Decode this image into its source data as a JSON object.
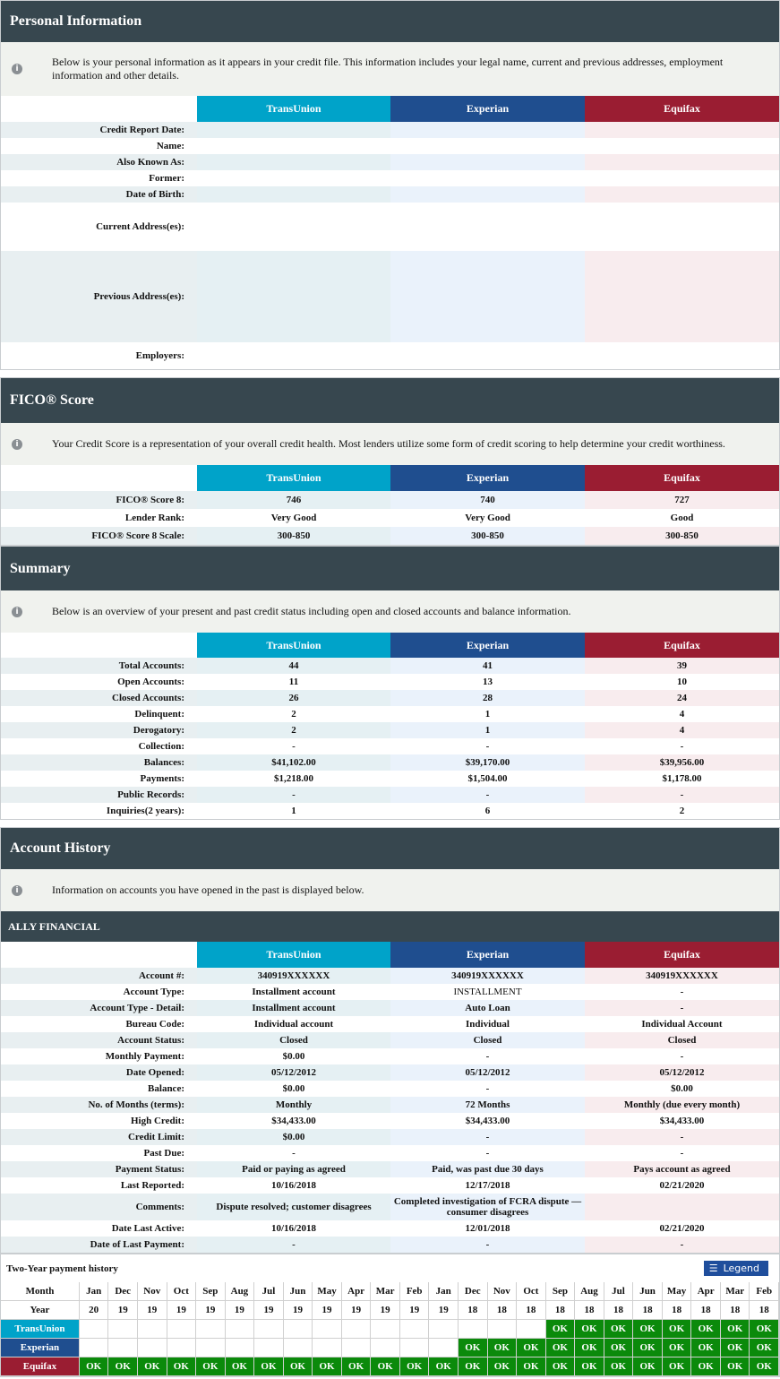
{
  "personal": {
    "title": "Personal Information",
    "info": "Below is your personal information as it appears in your credit file. This information includes your legal name, current and previous addresses, employment information and other details.",
    "bureaus": [
      "TransUnion",
      "Experian",
      "Equifax"
    ],
    "rows": [
      {
        "label": "Credit Report Date:",
        "values": [
          null,
          null,
          null
        ]
      },
      {
        "label": "Name:",
        "values": [
          null,
          null,
          null
        ]
      },
      {
        "label": "Also Known As:",
        "values": [
          null,
          null,
          null
        ]
      },
      {
        "label": "Former:",
        "values": [
          null,
          null,
          null
        ]
      },
      {
        "label": "Date of Birth:",
        "values": [
          null,
          null,
          null
        ]
      },
      {
        "label": "Current Address(es):",
        "values": [
          null,
          null,
          null
        ]
      },
      {
        "label": "Previous Address(es):",
        "values": [
          null,
          null,
          null
        ]
      },
      {
        "label": "Employers:",
        "values": [
          null,
          null,
          null
        ]
      }
    ]
  },
  "fico": {
    "title": "FICO® Score",
    "info": "Your Credit Score is a representation of your overall credit health. Most lenders utilize some form of credit scoring to help determine your credit worthiness.",
    "bureaus": [
      "TransUnion",
      "Experian",
      "Equifax"
    ],
    "rows": [
      {
        "label": "FICO® Score 8:",
        "values": [
          746,
          740,
          727
        ]
      },
      {
        "label": "Lender Rank:",
        "values": [
          "Very Good",
          "Very Good",
          "Good"
        ]
      },
      {
        "label": "FICO® Score 8 Scale:",
        "values": [
          "300-850",
          "300-850",
          "300-850"
        ]
      }
    ]
  },
  "summary": {
    "title": "Summary",
    "info": "Below is an overview of your present and past credit status including open and closed accounts and balance information.",
    "bureaus": [
      "TransUnion",
      "Experian",
      "Equifax"
    ],
    "rows": [
      {
        "label": "Total Accounts:",
        "values": [
          44,
          41,
          39
        ]
      },
      {
        "label": "Open Accounts:",
        "values": [
          11,
          13,
          10
        ]
      },
      {
        "label": "Closed Accounts:",
        "values": [
          26,
          28,
          24
        ]
      },
      {
        "label": "Delinquent:",
        "values": [
          2,
          1,
          4
        ]
      },
      {
        "label": "Derogatory:",
        "values": [
          2,
          1,
          4
        ]
      },
      {
        "label": "Collection:",
        "values": [
          "-",
          "-",
          "-"
        ]
      },
      {
        "label": "Balances:",
        "values": [
          "$41,102.00",
          "$39,170.00",
          "$39,956.00"
        ]
      },
      {
        "label": "Payments:",
        "values": [
          "$1,218.00",
          "$1,504.00",
          "$1,178.00"
        ]
      },
      {
        "label": "Public Records:",
        "values": [
          "-",
          "-",
          "-"
        ]
      },
      {
        "label": "Inquiries(2 years):",
        "values": [
          1,
          6,
          2
        ]
      }
    ]
  },
  "accounts": {
    "title": "Account History",
    "info": "Information on accounts you have opened in the past is displayed below.",
    "account_name": "ALLY FINANCIAL",
    "bureaus": [
      "TransUnion",
      "Experian",
      "Equifax"
    ],
    "rows": [
      {
        "label": "Account #:",
        "values": [
          "340919XXXXXX",
          "340919XXXXXX",
          "340919XXXXXX"
        ]
      },
      {
        "label": "Account Type:",
        "values": [
          "Installment account",
          "INSTALLMENT",
          "-"
        ]
      },
      {
        "label": "Account Type - Detail:",
        "values": [
          "Installment account",
          "Auto Loan",
          "-"
        ]
      },
      {
        "label": "Bureau Code:",
        "values": [
          "Individual account",
          "Individual",
          "Individual Account"
        ]
      },
      {
        "label": "Account Status:",
        "values": [
          "Closed",
          "Closed",
          "Closed"
        ]
      },
      {
        "label": "Monthly Payment:",
        "values": [
          "$0.00",
          "-",
          "-"
        ]
      },
      {
        "label": "Date Opened:",
        "values": [
          "05/12/2012",
          "05/12/2012",
          "05/12/2012"
        ]
      },
      {
        "label": "Balance:",
        "values": [
          "$0.00",
          "-",
          "$0.00"
        ]
      },
      {
        "label": "No. of Months (terms):",
        "values": [
          "Monthly",
          "72 Months",
          "Monthly (due every month)"
        ]
      },
      {
        "label": "High Credit:",
        "values": [
          "$34,433.00",
          "$34,433.00",
          "$34,433.00"
        ]
      },
      {
        "label": "Credit Limit:",
        "values": [
          "$0.00",
          "-",
          "-"
        ]
      },
      {
        "label": "Past Due:",
        "values": [
          "-",
          "-",
          "-"
        ]
      },
      {
        "label": "Payment Status:",
        "values": [
          "Paid or paying as agreed",
          "Paid, was past due 30 days",
          "Pays account as agreed"
        ]
      },
      {
        "label": "Last Reported:",
        "values": [
          "10/16/2018",
          "12/17/2018",
          "02/21/2020"
        ]
      },
      {
        "label": "Comments:",
        "values": [
          "Dispute resolved; customer disagrees",
          "Completed investigation of FCRA dispute — consumer disagrees",
          null
        ]
      },
      {
        "label": "Date Last Active:",
        "values": [
          "10/16/2018",
          "12/01/2018",
          "02/21/2020"
        ]
      },
      {
        "label": "Date of Last Payment:",
        "values": [
          "-",
          "-",
          "-"
        ]
      }
    ]
  },
  "payment_history": {
    "title": "Two-Year payment history",
    "legend": "Legend",
    "month_label": "Month",
    "year_label": "Year",
    "months": [
      "Jan",
      "Dec",
      "Nov",
      "Oct",
      "Sep",
      "Aug",
      "Jul",
      "Jun",
      "May",
      "Apr",
      "Mar",
      "Feb",
      "Jan",
      "Dec",
      "Nov",
      "Oct",
      "Sep",
      "Aug",
      "Jul",
      "Jun",
      "May",
      "Apr",
      "Mar",
      "Feb"
    ],
    "years": [
      20,
      19,
      19,
      19,
      19,
      19,
      19,
      19,
      19,
      19,
      19,
      19,
      19,
      18,
      18,
      18,
      18,
      18,
      18,
      18,
      18,
      18,
      18,
      18
    ],
    "rows": [
      {
        "bureau": "TransUnion",
        "values": [
          null,
          null,
          null,
          null,
          null,
          null,
          null,
          null,
          null,
          null,
          null,
          null,
          null,
          null,
          null,
          null,
          "OK",
          "OK",
          "OK",
          "OK",
          "OK",
          "OK",
          "OK",
          "OK"
        ]
      },
      {
        "bureau": "Experian",
        "values": [
          null,
          null,
          null,
          null,
          null,
          null,
          null,
          null,
          null,
          null,
          null,
          null,
          null,
          "OK",
          "OK",
          "OK",
          "OK",
          "OK",
          "OK",
          "OK",
          "OK",
          "OK",
          "OK",
          "OK"
        ]
      },
      {
        "bureau": "Equifax",
        "values": [
          "OK",
          "OK",
          "OK",
          "OK",
          "OK",
          "OK",
          "OK",
          "OK",
          "OK",
          "OK",
          "OK",
          "OK",
          "OK",
          "OK",
          "OK",
          "OK",
          "OK",
          "OK",
          "OK",
          "OK",
          "OK",
          "OK",
          "OK",
          "OK"
        ]
      }
    ]
  }
}
